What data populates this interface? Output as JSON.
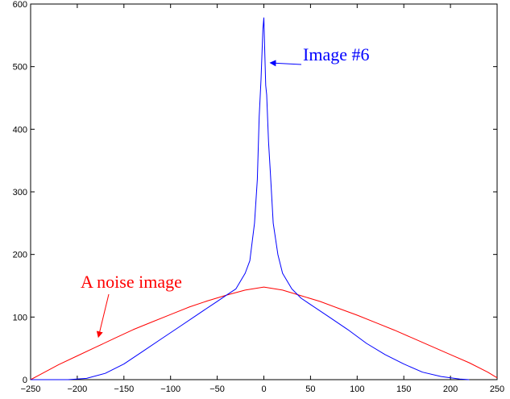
{
  "chart_data": {
    "type": "line",
    "title": "",
    "xlabel": "",
    "ylabel": "",
    "xlim": [
      -250,
      250
    ],
    "ylim": [
      0,
      600
    ],
    "grid": false,
    "x_ticks": [
      -250,
      -200,
      -150,
      -100,
      -50,
      0,
      50,
      100,
      150,
      200,
      250
    ],
    "y_ticks": [
      0,
      100,
      200,
      300,
      400,
      500,
      600
    ],
    "x_tick_labels": [
      "−250",
      "−200",
      "−150",
      "−100",
      "−50",
      "0",
      "50",
      "100",
      "150",
      "200",
      "250"
    ],
    "y_tick_labels": [
      "0",
      "100",
      "200",
      "300",
      "400",
      "500",
      "600"
    ],
    "series": [
      {
        "color": "#0000ff",
        "x": [
          -250,
          -210,
          -190,
          -170,
          -150,
          -130,
          -110,
          -90,
          -70,
          -50,
          -40,
          -30,
          -20,
          -15,
          -10,
          -7,
          -5,
          -3,
          -1,
          0,
          1,
          2,
          3,
          5,
          7,
          10,
          15,
          20,
          30,
          40,
          50,
          70,
          90,
          110,
          130,
          150,
          170,
          190,
          210,
          220
        ],
        "y": [
          0,
          0,
          2,
          10,
          25,
          45,
          65,
          85,
          105,
          125,
          135,
          145,
          170,
          190,
          250,
          320,
          420,
          480,
          560,
          578,
          520,
          470,
          455,
          380,
          330,
          250,
          200,
          170,
          145,
          130,
          120,
          100,
          80,
          58,
          40,
          25,
          12,
          5,
          1,
          0
        ]
      },
      {
        "color": "#ff0000",
        "x": [
          -250,
          -240,
          -220,
          -200,
          -180,
          -160,
          -140,
          -120,
          -100,
          -80,
          -60,
          -40,
          -20,
          0,
          20,
          40,
          60,
          80,
          100,
          120,
          140,
          160,
          180,
          200,
          220,
          240,
          250
        ],
        "y": [
          0,
          8,
          24,
          38,
          52,
          66,
          80,
          92,
          104,
          116,
          126,
          135,
          143,
          148,
          143,
          134,
          125,
          114,
          103,
          91,
          79,
          66,
          53,
          40,
          27,
          12,
          3
        ]
      }
    ],
    "annotations": [
      {
        "text": "Image #6",
        "color": "#0000ff",
        "x": 5,
        "y": 470
      },
      {
        "text": "A noise image",
        "color": "#ff0000",
        "x": -180,
        "y": 60
      }
    ]
  }
}
